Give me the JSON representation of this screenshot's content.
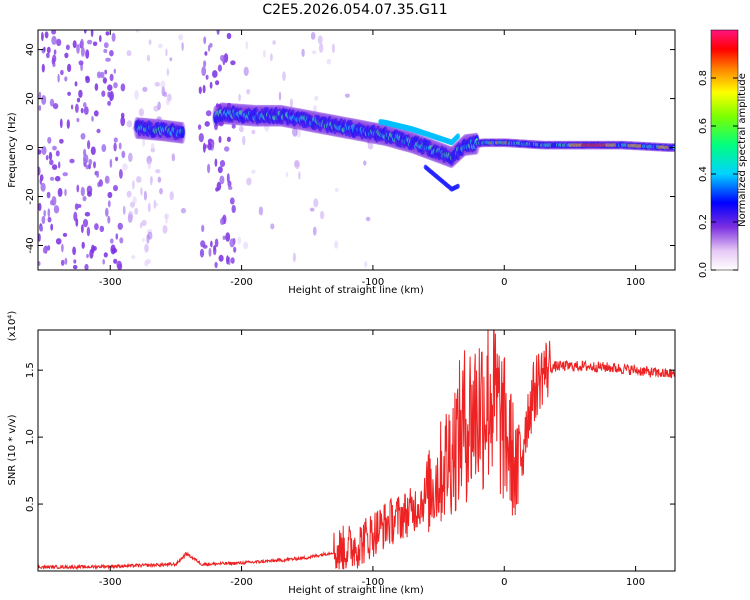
{
  "title": "C2E5.2026.054.07.35.G11",
  "chart_data": [
    {
      "type": "heatmap",
      "title": "C2E5.2026.054.07.35.G11",
      "xlabel": "Height of straight line (km)",
      "ylabel": "Frequency (Hz)",
      "xlim": [
        -355,
        130
      ],
      "ylim": [
        -50,
        48
      ],
      "xticks": [
        -300,
        -200,
        -100,
        0,
        100
      ],
      "yticks": [
        -40,
        -20,
        0,
        20,
        40
      ],
      "colorbar": {
        "label": "Normalized spectral amplitude",
        "range": [
          0,
          1
        ],
        "ticks": [
          0.0,
          0.2,
          0.4,
          0.6,
          0.8
        ]
      },
      "signal_track": [
        {
          "x": -280,
          "y": 8
        },
        {
          "x": -260,
          "y": 7
        },
        {
          "x": -245,
          "y": 6
        },
        {
          "x": -215,
          "y": 14
        },
        {
          "x": -190,
          "y": 13
        },
        {
          "x": -170,
          "y": 13
        },
        {
          "x": -150,
          "y": 11
        },
        {
          "x": -130,
          "y": 9
        },
        {
          "x": -110,
          "y": 7
        },
        {
          "x": -90,
          "y": 5
        },
        {
          "x": -70,
          "y": 2
        },
        {
          "x": -55,
          "y": -1
        },
        {
          "x": -40,
          "y": -4
        },
        {
          "x": -30,
          "y": 1
        },
        {
          "x": -15,
          "y": 2
        },
        {
          "x": 0,
          "y": 2
        },
        {
          "x": 30,
          "y": 1
        },
        {
          "x": 60,
          "y": 1
        },
        {
          "x": 90,
          "y": 1
        },
        {
          "x": 125,
          "y": 0
        }
      ]
    },
    {
      "type": "line",
      "xlabel": "Height of straight line (km)",
      "ylabel": "SNR (10 * v/v)",
      "y_scale_note": "(x10⁴)",
      "xlim": [
        -355,
        130
      ],
      "ylim": [
        0,
        1.8
      ],
      "xticks": [
        -300,
        -200,
        -100,
        0,
        100
      ],
      "yticks": [
        0.5,
        1.0,
        1.5
      ],
      "ytick_labels": [
        "0.5",
        "1.0",
        "1.5"
      ],
      "series": [
        {
          "name": "SNR",
          "color": "#ee2222",
          "points": [
            [
              -355,
              0.03
            ],
            [
              -320,
              0.03
            ],
            [
              -280,
              0.04
            ],
            [
              -250,
              0.05
            ],
            [
              -242,
              0.13
            ],
            [
              -230,
              0.05
            ],
            [
              -200,
              0.06
            ],
            [
              -170,
              0.08
            ],
            [
              -150,
              0.1
            ],
            [
              -130,
              0.14
            ],
            [
              -110,
              0.2
            ],
            [
              -100,
              0.28
            ],
            [
              -90,
              0.35
            ],
            [
              -80,
              0.4
            ],
            [
              -70,
              0.45
            ],
            [
              -60,
              0.55
            ],
            [
              -50,
              0.7
            ],
            [
              -40,
              0.9
            ],
            [
              -30,
              1.1
            ],
            [
              -20,
              1.2
            ],
            [
              -10,
              1.35
            ],
            [
              -2,
              1.1
            ],
            [
              5,
              0.9
            ],
            [
              10,
              0.7
            ],
            [
              15,
              1.05
            ],
            [
              20,
              1.25
            ],
            [
              25,
              1.4
            ],
            [
              30,
              1.5
            ],
            [
              40,
              1.53
            ],
            [
              60,
              1.53
            ],
            [
              80,
              1.52
            ],
            [
              100,
              1.5
            ],
            [
              115,
              1.48
            ],
            [
              130,
              1.47
            ]
          ]
        }
      ]
    }
  ]
}
